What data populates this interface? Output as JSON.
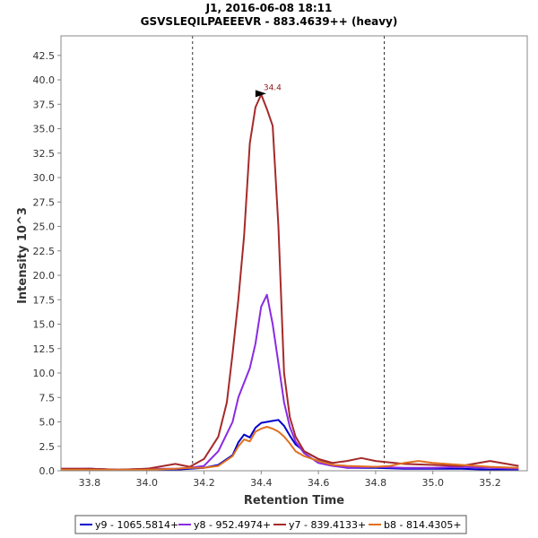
{
  "chart_data": {
    "type": "line",
    "title": "J1, 2016-06-08 18:11",
    "subtitle": "GSVSLEQILPAEEEVR - 883.4639++ (heavy)",
    "xlabel": "Retention Time",
    "ylabel": "Intensity 10^3",
    "xlim": [
      33.7,
      35.33
    ],
    "ylim": [
      0,
      44.5
    ],
    "xticks": [
      33.8,
      34.0,
      34.2,
      34.4,
      34.6,
      34.8,
      35.0,
      35.2
    ],
    "yticks": [
      0.0,
      2.5,
      5.0,
      7.5,
      10.0,
      12.5,
      15.0,
      17.5,
      20.0,
      22.5,
      25.0,
      27.5,
      30.0,
      32.5,
      35.0,
      37.5,
      40.0,
      42.5
    ],
    "x_tick_labels": [
      "33.8",
      "34.0",
      "34.2",
      "34.4",
      "34.6",
      "34.8",
      "35.0",
      "35.2"
    ],
    "y_tick_labels": [
      "0.0",
      "2.5",
      "5.0",
      "7.5",
      "10.0",
      "12.5",
      "15.0",
      "17.5",
      "20.0",
      "22.5",
      "25.0",
      "27.5",
      "30.0",
      "32.5",
      "35.0",
      "37.5",
      "40.0",
      "42.5"
    ],
    "vlines": [
      34.16,
      34.83
    ],
    "peak_annotation": {
      "label": "34.4",
      "x": 34.43,
      "y": 38.5,
      "color": "#8b1a1a"
    },
    "legend_position": "bottom",
    "series": [
      {
        "name": "y9 - 1065.5814+",
        "color": "#0000cc",
        "x": [
          33.7,
          33.8,
          33.9,
          34.0,
          34.1,
          34.15,
          34.2,
          34.25,
          34.3,
          34.32,
          34.34,
          34.36,
          34.38,
          34.4,
          34.42,
          34.44,
          34.46,
          34.48,
          34.5,
          34.52,
          34.55,
          34.6,
          34.65,
          34.7,
          34.8,
          34.9,
          35.0,
          35.1,
          35.2,
          35.3
        ],
        "y": [
          0.1,
          0.2,
          0.1,
          0.1,
          0.1,
          0.2,
          0.3,
          0.6,
          1.6,
          2.9,
          3.7,
          3.4,
          4.4,
          4.9,
          5.0,
          5.1,
          5.2,
          4.6,
          3.6,
          2.7,
          2.0,
          1.2,
          0.6,
          0.3,
          0.3,
          0.2,
          0.2,
          0.2,
          0.1,
          0.1
        ]
      },
      {
        "name": "y8 - 952.4974+",
        "color": "#8a2be2",
        "x": [
          33.7,
          33.8,
          33.9,
          34.0,
          34.1,
          34.15,
          34.2,
          34.25,
          34.3,
          34.32,
          34.34,
          34.36,
          34.38,
          34.4,
          34.42,
          34.44,
          34.46,
          34.48,
          34.5,
          34.52,
          34.55,
          34.6,
          34.65,
          34.7,
          34.8,
          34.9,
          35.0,
          35.1,
          35.2,
          35.3
        ],
        "y": [
          0.2,
          0.2,
          0.1,
          0.2,
          0.2,
          0.3,
          0.5,
          2.0,
          5.0,
          7.5,
          9.0,
          10.5,
          13.0,
          16.8,
          18.0,
          15.0,
          11.0,
          7.0,
          4.5,
          3.0,
          1.8,
          0.8,
          0.5,
          0.3,
          0.4,
          0.3,
          0.3,
          0.4,
          0.3,
          0.2
        ]
      },
      {
        "name": "y7 - 839.4133+",
        "color": "#a52a2a",
        "x": [
          33.7,
          33.8,
          33.9,
          34.0,
          34.1,
          34.15,
          34.2,
          34.25,
          34.28,
          34.3,
          34.32,
          34.34,
          34.36,
          34.38,
          34.4,
          34.42,
          34.44,
          34.46,
          34.48,
          34.5,
          34.52,
          34.55,
          34.6,
          34.65,
          34.7,
          34.75,
          34.8,
          34.9,
          35.0,
          35.1,
          35.2,
          35.3
        ],
        "y": [
          0.2,
          0.2,
          0.1,
          0.2,
          0.7,
          0.4,
          1.2,
          3.5,
          7.0,
          12.0,
          17.5,
          24.0,
          33.5,
          37.2,
          38.5,
          37.0,
          35.3,
          25.0,
          10.0,
          5.5,
          3.5,
          2.0,
          1.2,
          0.8,
          1.0,
          1.3,
          1.0,
          0.7,
          0.6,
          0.5,
          1.0,
          0.5
        ]
      },
      {
        "name": "b8 - 814.4305+",
        "color": "#e07020",
        "x": [
          33.7,
          33.8,
          33.9,
          34.0,
          34.1,
          34.15,
          34.2,
          34.25,
          34.3,
          34.32,
          34.34,
          34.36,
          34.38,
          34.4,
          34.42,
          34.44,
          34.46,
          34.48,
          34.5,
          34.52,
          34.55,
          34.6,
          34.65,
          34.7,
          34.8,
          34.85,
          34.9,
          34.95,
          35.0,
          35.1,
          35.2,
          35.3
        ],
        "y": [
          0.1,
          0.1,
          0.1,
          0.1,
          0.2,
          0.3,
          0.3,
          0.5,
          1.5,
          2.5,
          3.2,
          3.0,
          4.0,
          4.3,
          4.5,
          4.3,
          4.0,
          3.5,
          2.8,
          2.0,
          1.5,
          1.0,
          0.6,
          0.5,
          0.4,
          0.5,
          0.8,
          1.0,
          0.8,
          0.6,
          0.4,
          0.3
        ]
      }
    ]
  }
}
